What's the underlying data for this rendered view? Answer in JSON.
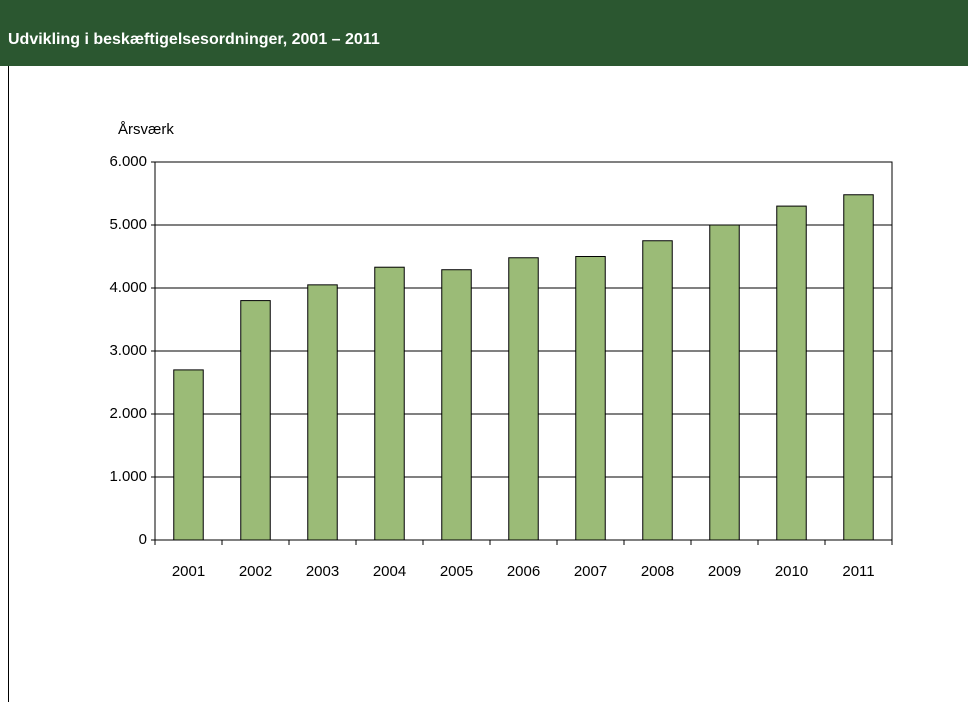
{
  "header": {
    "title": "Udvikling i beskæftigelsesordninger, 2001 – 2011"
  },
  "chart_data": {
    "type": "bar",
    "y_label": "Årsværk",
    "categories": [
      "2001",
      "2002",
      "2003",
      "2004",
      "2005",
      "2006",
      "2007",
      "2008",
      "2009",
      "2010",
      "2011"
    ],
    "values": [
      2700,
      3800,
      4050,
      4330,
      4290,
      4480,
      4500,
      4750,
      5000,
      5300,
      5480
    ],
    "color": "#9bbb77",
    "ylim": [
      0,
      6000
    ],
    "yticks": [
      0,
      {
        "value": 1000,
        "label": "1.000"
      },
      {
        "value": 2000,
        "label": "2.000"
      },
      {
        "value": 3000,
        "label": "3.000"
      },
      {
        "value": 4000,
        "label": "4.000"
      },
      {
        "value": 5000,
        "label": "5.000"
      },
      {
        "value": 6000,
        "label": "6.000"
      }
    ],
    "grid": true
  }
}
